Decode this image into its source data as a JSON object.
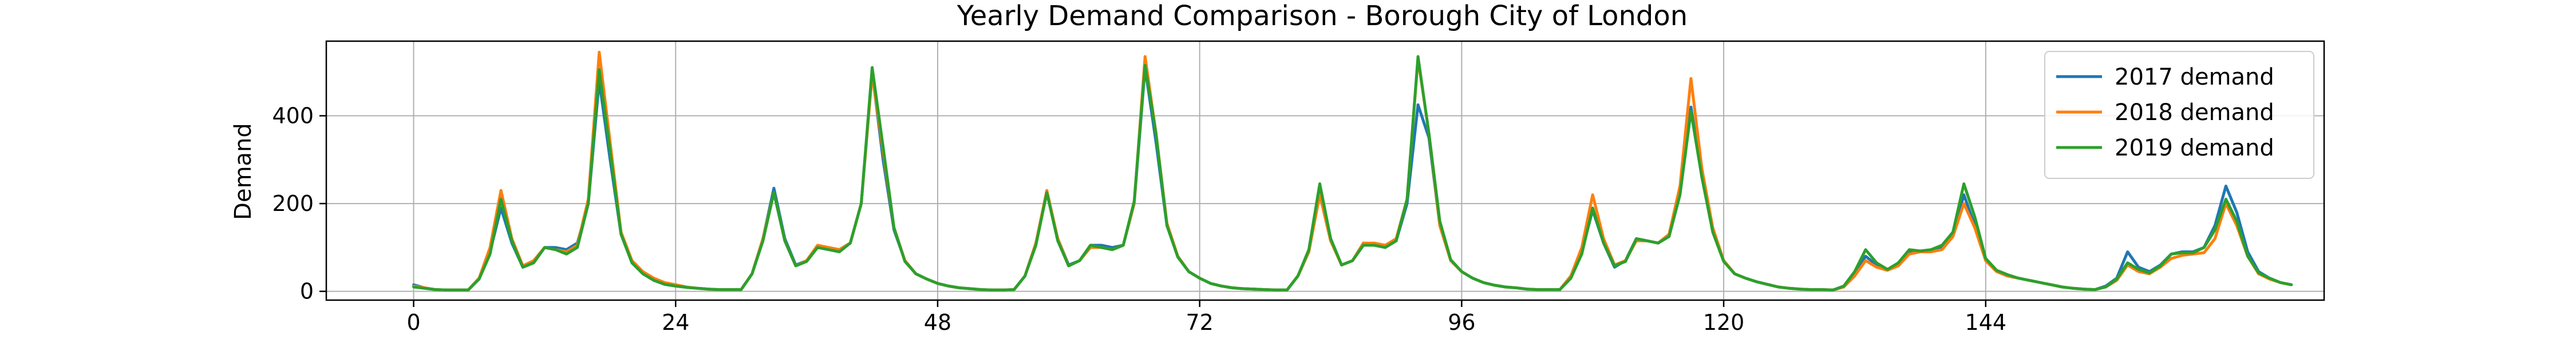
{
  "chart_data": {
    "type": "line",
    "title": "Yearly Demand Comparison - Borough City of London",
    "xlabel": "",
    "ylabel": "Demand",
    "xlim": [
      -8,
      175
    ],
    "ylim": [
      -20,
      570
    ],
    "xticks": [
      0,
      24,
      48,
      72,
      96,
      120,
      144
    ],
    "yticks": [
      0,
      200,
      400
    ],
    "grid": true,
    "legend_position": "top-right",
    "series": [
      {
        "name": "2017 demand",
        "color": "#1f77b4",
        "values": [
          15,
          8,
          4,
          3,
          3,
          3,
          30,
          90,
          190,
          110,
          55,
          65,
          100,
          100,
          95,
          110,
          200,
          480,
          300,
          130,
          65,
          40,
          25,
          16,
          12,
          9,
          7,
          5,
          4,
          4,
          4,
          40,
          120,
          235,
          120,
          60,
          70,
          100,
          100,
          95,
          110,
          200,
          500,
          300,
          140,
          70,
          40,
          28,
          18,
          12,
          8,
          6,
          4,
          3,
          3,
          4,
          35,
          110,
          225,
          120,
          60,
          70,
          105,
          105,
          100,
          105,
          200,
          510,
          340,
          150,
          80,
          45,
          30,
          18,
          12,
          8,
          6,
          5,
          4,
          3,
          3,
          35,
          90,
          235,
          120,
          60,
          70,
          110,
          105,
          100,
          115,
          200,
          425,
          350,
          150,
          70,
          45,
          30,
          20,
          14,
          10,
          8,
          5,
          4,
          4,
          4,
          35,
          90,
          185,
          110,
          55,
          70,
          120,
          115,
          110,
          130,
          230,
          420,
          260,
          140,
          70,
          40,
          30,
          22,
          16,
          10,
          7,
          5,
          4,
          4,
          3,
          10,
          40,
          80,
          60,
          50,
          60,
          90,
          90,
          90,
          100,
          130,
          220,
          150,
          70,
          45,
          35,
          30,
          25,
          20,
          15,
          10,
          7,
          5,
          4,
          12,
          30,
          90,
          55,
          45,
          60,
          85,
          90,
          90,
          100,
          150,
          240,
          180,
          90,
          45,
          30,
          20,
          15
        ]
      },
      {
        "name": "2018 demand",
        "color": "#ff7f0e",
        "values": [
          12,
          8,
          4,
          3,
          3,
          3,
          30,
          100,
          230,
          120,
          58,
          70,
          100,
          95,
          90,
          105,
          210,
          545,
          340,
          135,
          70,
          45,
          30,
          20,
          15,
          10,
          7,
          5,
          4,
          4,
          4,
          40,
          120,
          225,
          115,
          58,
          70,
          105,
          100,
          95,
          110,
          200,
          495,
          320,
          145,
          70,
          40,
          28,
          18,
          12,
          8,
          6,
          4,
          3,
          3,
          4,
          35,
          110,
          230,
          120,
          58,
          70,
          100,
          100,
          95,
          105,
          200,
          535,
          360,
          155,
          80,
          45,
          30,
          18,
          12,
          8,
          6,
          5,
          4,
          3,
          3,
          35,
          90,
          220,
          115,
          60,
          70,
          110,
          110,
          105,
          120,
          210,
          530,
          360,
          150,
          70,
          45,
          30,
          20,
          14,
          10,
          8,
          5,
          4,
          4,
          4,
          35,
          100,
          220,
          120,
          60,
          70,
          115,
          115,
          110,
          130,
          240,
          485,
          280,
          145,
          70,
          40,
          30,
          22,
          16,
          10,
          7,
          5,
          4,
          4,
          3,
          10,
          35,
          70,
          55,
          48,
          58,
          85,
          90,
          90,
          95,
          125,
          200,
          145,
          70,
          45,
          35,
          30,
          25,
          20,
          15,
          10,
          7,
          5,
          4,
          10,
          25,
          60,
          45,
          40,
          55,
          75,
          82,
          85,
          88,
          120,
          200,
          150,
          80,
          40,
          28,
          20,
          15
        ]
      },
      {
        "name": "2019 demand",
        "color": "#2ca02c",
        "values": [
          10,
          7,
          4,
          3,
          3,
          3,
          28,
          85,
          210,
          115,
          55,
          65,
          100,
          95,
          85,
          100,
          200,
          505,
          320,
          130,
          65,
          40,
          25,
          16,
          12,
          9,
          7,
          5,
          4,
          4,
          4,
          40,
          115,
          225,
          115,
          58,
          68,
          100,
          95,
          90,
          110,
          200,
          510,
          330,
          145,
          68,
          40,
          28,
          18,
          12,
          8,
          6,
          4,
          3,
          3,
          4,
          35,
          105,
          225,
          115,
          58,
          70,
          105,
          100,
          95,
          105,
          205,
          515,
          360,
          150,
          78,
          45,
          30,
          18,
          12,
          8,
          6,
          5,
          4,
          3,
          3,
          35,
          95,
          245,
          120,
          60,
          70,
          105,
          105,
          100,
          115,
          210,
          535,
          360,
          160,
          72,
          45,
          30,
          20,
          14,
          10,
          8,
          5,
          4,
          4,
          4,
          30,
          85,
          190,
          110,
          58,
          68,
          120,
          115,
          110,
          125,
          220,
          410,
          260,
          135,
          68,
          40,
          30,
          22,
          16,
          10,
          7,
          5,
          4,
          4,
          3,
          12,
          45,
          95,
          65,
          50,
          65,
          95,
          92,
          95,
          105,
          135,
          245,
          170,
          75,
          48,
          38,
          30,
          25,
          20,
          15,
          10,
          7,
          5,
          4,
          10,
          28,
          65,
          50,
          42,
          58,
          85,
          88,
          88,
          100,
          140,
          210,
          160,
          80,
          42,
          30,
          20,
          15
        ]
      }
    ]
  }
}
